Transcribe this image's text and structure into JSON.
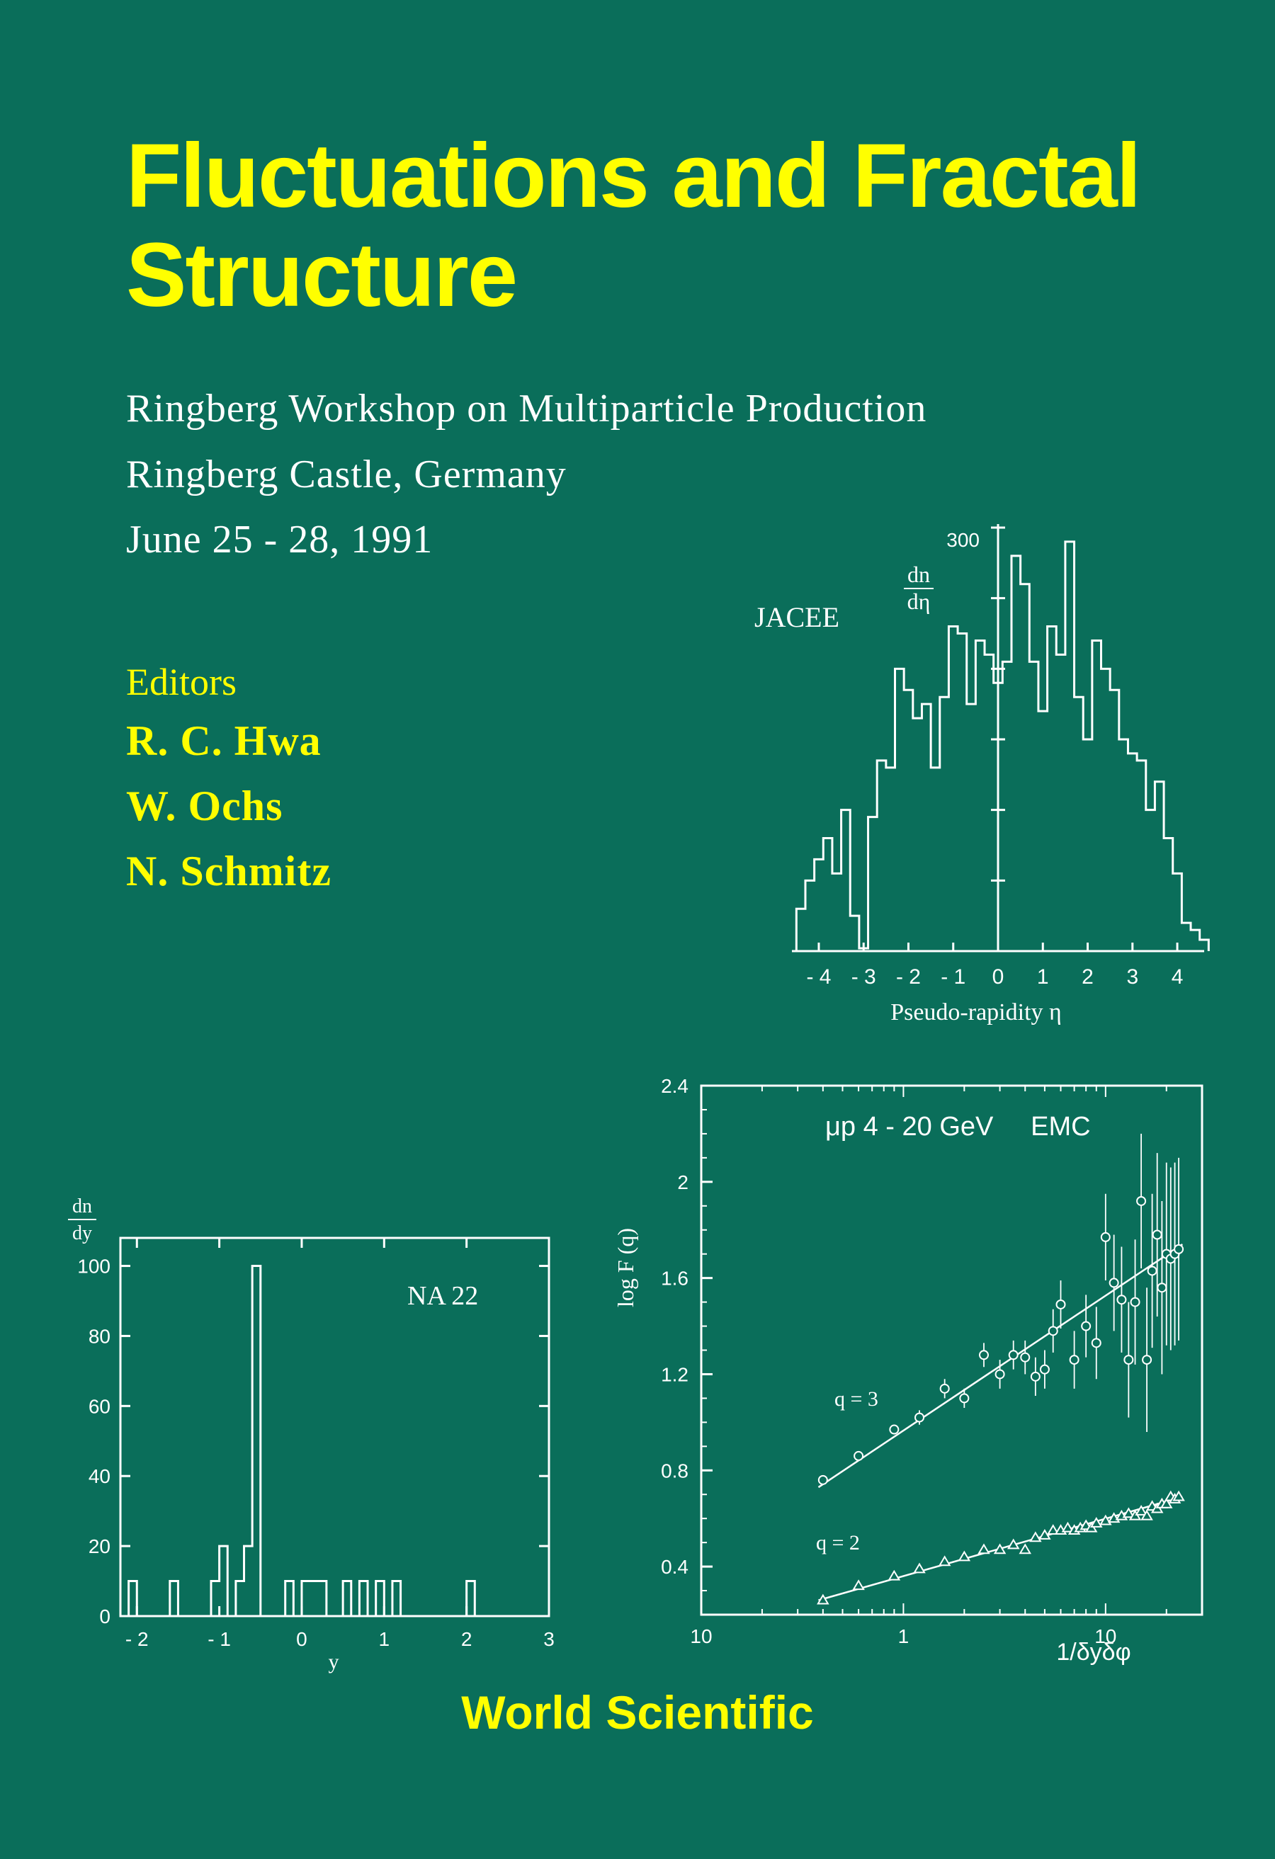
{
  "cover": {
    "title_line1": "Fluctuations and Fractal",
    "title_line2": "Structure",
    "subtitle_lines": [
      "Ringberg Workshop on Multiparticle Production",
      "Ringberg Castle, Germany",
      "June 25 - 28, 1991"
    ],
    "editors_label": "Editors",
    "editors": [
      "R. C. Hwa",
      "W. Ochs",
      "N. Schmitz"
    ],
    "publisher": "World Scientific",
    "colors": {
      "background": "#0a6e5a",
      "title": "#ffff00",
      "text": "#ffffff"
    }
  },
  "chart_data": [
    {
      "type": "histogram",
      "label": "JACEE",
      "ylabel_num": "dn",
      "ylabel_den": "dη",
      "ytick_top": "300",
      "xlabel": "Pseudo-rapidity η",
      "xlim": [
        -4.6,
        4.6
      ],
      "ylim": [
        0,
        300
      ],
      "xticks": [
        "- 4",
        "- 3",
        "- 2",
        "- 1",
        "0",
        "1",
        "2",
        "3",
        "4"
      ],
      "xtick_values": [
        -4,
        -3,
        -2,
        -1,
        0,
        1,
        2,
        3,
        4
      ],
      "bin_start": -4.5,
      "bin_width": 0.2,
      "values": [
        30,
        50,
        65,
        80,
        55,
        100,
        25,
        2,
        95,
        135,
        130,
        200,
        185,
        165,
        175,
        130,
        180,
        230,
        225,
        175,
        220,
        210,
        190,
        205,
        280,
        260,
        205,
        170,
        230,
        210,
        290,
        180,
        150,
        220,
        200,
        185,
        150,
        140,
        135,
        100,
        120,
        80,
        55,
        20,
        15,
        8
      ]
    },
    {
      "type": "histogram",
      "label": "NA 22",
      "ylabel_num": "dn",
      "ylabel_den": "dy",
      "xlabel": "y",
      "xlim": [
        -2.2,
        3.0
      ],
      "ylim": [
        0,
        108
      ],
      "yticks": [
        "0",
        "20",
        "40",
        "60",
        "80",
        "100"
      ],
      "ytick_values": [
        0,
        20,
        40,
        60,
        80,
        100
      ],
      "xticks": [
        "- 2",
        "- 1",
        "0",
        "1",
        "2",
        "3"
      ],
      "xtick_values": [
        -2,
        -1,
        0,
        1,
        2,
        3
      ],
      "bin_start": -2.2,
      "bin_width": 0.1,
      "values": [
        0,
        10,
        0,
        0,
        0,
        0,
        10,
        0,
        0,
        0,
        0,
        10,
        20,
        0,
        10,
        20,
        100,
        0,
        0,
        0,
        10,
        0,
        10,
        10,
        10,
        0,
        0,
        10,
        0,
        10,
        0,
        10,
        0,
        10,
        0,
        0,
        0,
        0,
        0,
        0,
        0,
        0,
        10,
        0,
        0,
        0,
        0,
        0,
        0,
        0,
        0,
        0
      ]
    },
    {
      "type": "scatter",
      "label": "μp 4 - 20 GeV     EMC",
      "ylabel": "log F (q)",
      "xlabel": "1/δyδφ",
      "xscale": "log",
      "xlim": [
        0.1,
        30
      ],
      "ylim": [
        0.2,
        2.4
      ],
      "yticks": [
        "0.4",
        "0.8",
        "1.2",
        "1.6",
        "2",
        "2.4"
      ],
      "ytick_values": [
        0.4,
        0.8,
        1.2,
        1.6,
        2.0,
        2.4
      ],
      "xticks": [
        "10",
        "1",
        "10"
      ],
      "xtick_values": [
        0.1,
        1,
        10
      ],
      "series": [
        {
          "name": "q = 3",
          "marker": "circle",
          "x": [
            0.4,
            0.6,
            0.9,
            1.2,
            1.6,
            2.0,
            2.5,
            3.0,
            3.5,
            4.0,
            4.5,
            5.0,
            5.5,
            6.0,
            7.0,
            8.0,
            9.0,
            10.0,
            11.0,
            12.0,
            13.0,
            14.0,
            15.0,
            16.0,
            17.0,
            18.0,
            19.0,
            20.0,
            21.0,
            22.0,
            23.0
          ],
          "y": [
            0.76,
            0.86,
            0.97,
            1.02,
            1.14,
            1.1,
            1.28,
            1.2,
            1.28,
            1.27,
            1.19,
            1.22,
            1.38,
            1.49,
            1.26,
            1.4,
            1.33,
            1.77,
            1.58,
            1.51,
            1.26,
            1.5,
            1.92,
            1.26,
            1.63,
            1.78,
            1.56,
            1.7,
            1.68,
            1.7,
            1.72
          ],
          "err": [
            0.02,
            0.02,
            0.02,
            0.03,
            0.04,
            0.04,
            0.05,
            0.06,
            0.06,
            0.07,
            0.08,
            0.08,
            0.09,
            0.1,
            0.12,
            0.13,
            0.15,
            0.18,
            0.2,
            0.22,
            0.24,
            0.26,
            0.28,
            0.3,
            0.32,
            0.34,
            0.36,
            0.38,
            0.38,
            0.38,
            0.38
          ],
          "fit": [
            [
              0.38,
              0.73
            ],
            [
              24,
              1.74
            ]
          ]
        },
        {
          "name": "q = 2",
          "marker": "triangle",
          "x": [
            0.4,
            0.6,
            0.9,
            1.2,
            1.6,
            2.0,
            2.5,
            3.0,
            3.5,
            4.0,
            4.5,
            5.0,
            5.5,
            6.0,
            6.5,
            7.0,
            7.5,
            8.0,
            8.5,
            9.0,
            10.0,
            11.0,
            12.0,
            13.0,
            14.0,
            15.0,
            16.0,
            17.0,
            18.0,
            19.0,
            20.0,
            21.0,
            22.0,
            23.0
          ],
          "y": [
            0.26,
            0.32,
            0.36,
            0.39,
            0.42,
            0.44,
            0.47,
            0.47,
            0.49,
            0.47,
            0.52,
            0.53,
            0.55,
            0.55,
            0.56,
            0.55,
            0.56,
            0.57,
            0.56,
            0.58,
            0.59,
            0.6,
            0.61,
            0.62,
            0.61,
            0.63,
            0.61,
            0.65,
            0.64,
            0.66,
            0.66,
            0.69,
            0.68,
            0.69
          ],
          "fit": [
            [
              0.38,
              0.26
            ],
            [
              24,
              0.69
            ]
          ]
        }
      ]
    }
  ]
}
